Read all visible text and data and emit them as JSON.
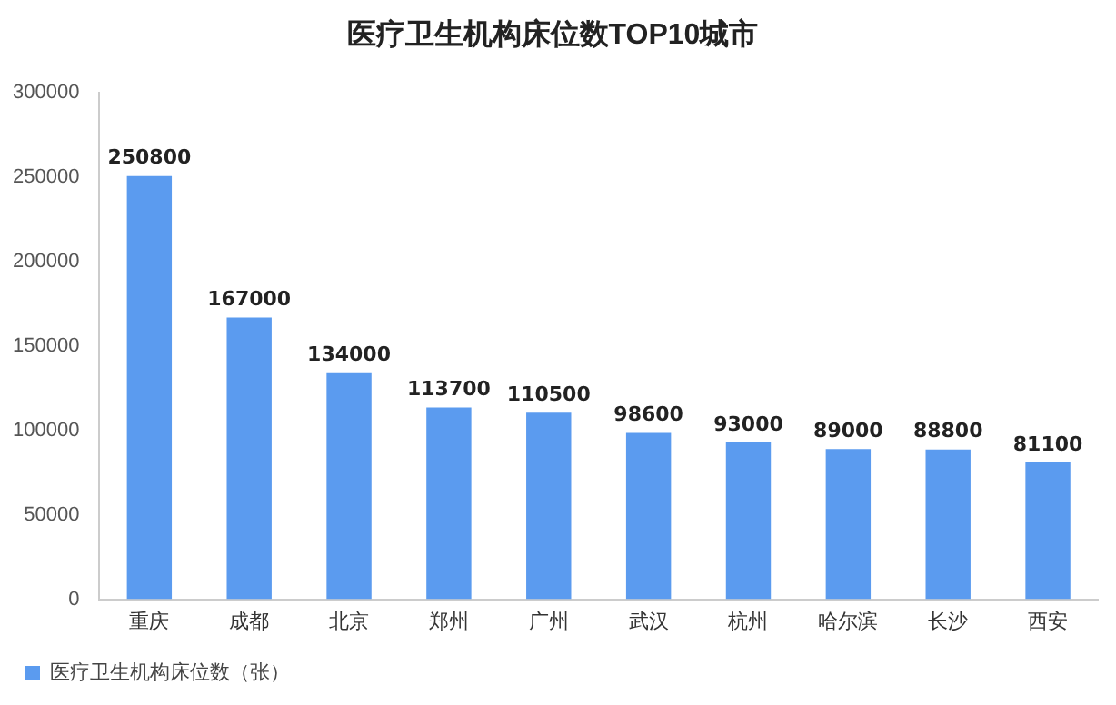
{
  "chart_data": {
    "type": "bar",
    "title": "医疗卫生机构床位数TOP10城市",
    "categories": [
      "重庆",
      "成都",
      "北京",
      "郑州",
      "广州",
      "武汉",
      "杭州",
      "哈尔滨",
      "长沙",
      "西安"
    ],
    "series": [
      {
        "name": "医疗卫生机构床位数（张）",
        "color": "#5b9bef",
        "values": [
          250800,
          167000,
          134000,
          113700,
          110500,
          98600,
          93000,
          89000,
          88800,
          81100
        ]
      }
    ],
    "ylim": [
      0,
      300000
    ],
    "yticks": [
      0,
      50000,
      100000,
      150000,
      200000,
      250000,
      300000
    ],
    "data_labels": true,
    "legend": "bottom left",
    "grid": false
  }
}
